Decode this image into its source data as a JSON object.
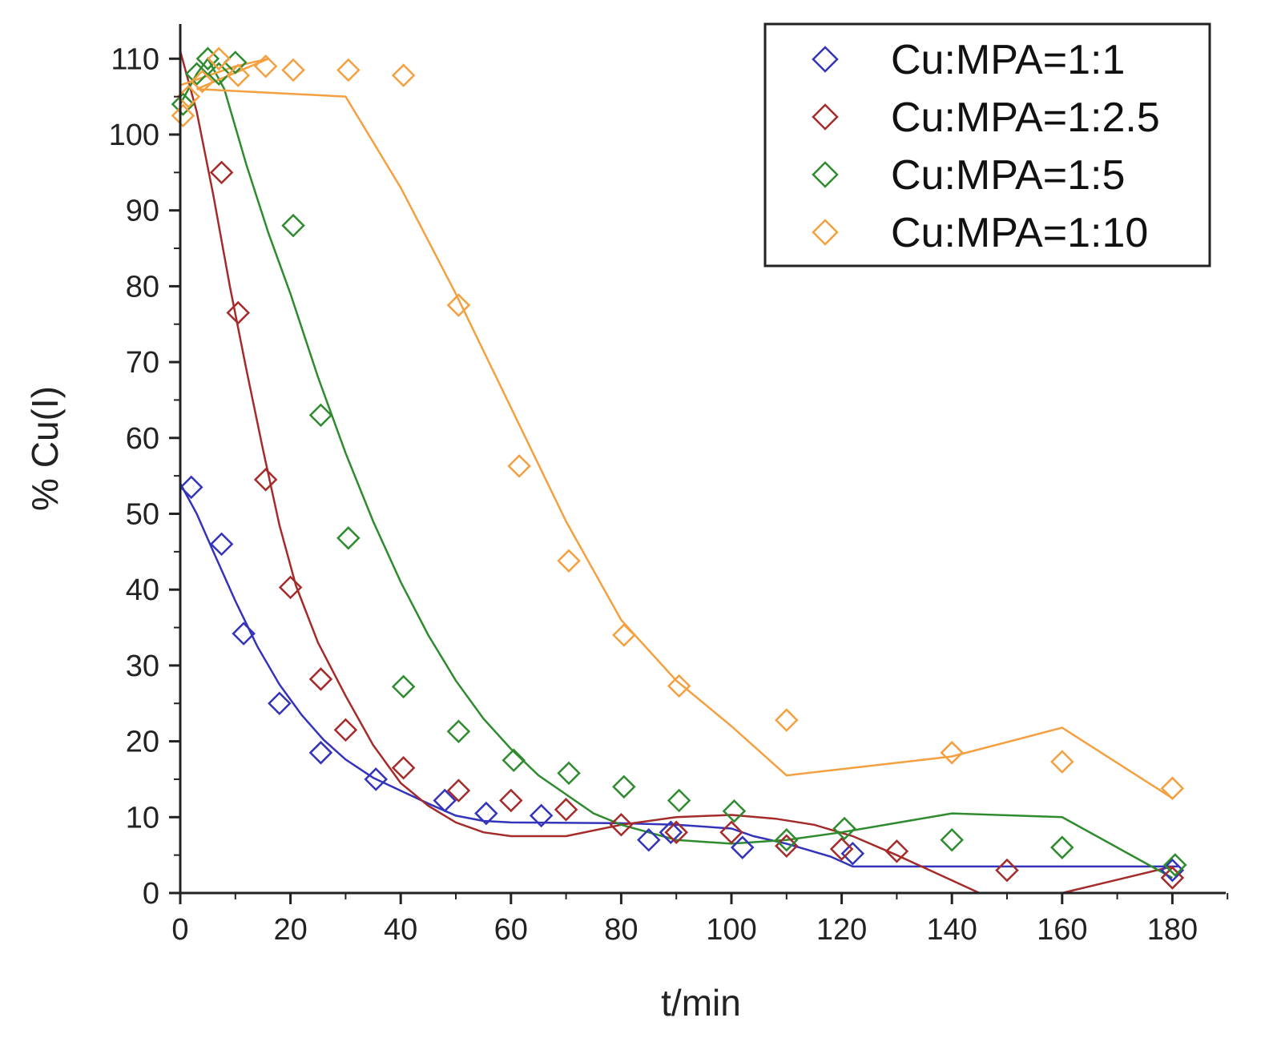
{
  "chart_data": {
    "type": "scatter",
    "title": "",
    "xlabel": "t/min",
    "ylabel": "% Cu(I)",
    "xlim": [
      0,
      190
    ],
    "ylim": [
      0,
      110
    ],
    "xticks": [
      0,
      20,
      40,
      60,
      80,
      100,
      120,
      140,
      160,
      180
    ],
    "yticks": [
      0,
      10,
      20,
      30,
      40,
      50,
      60,
      70,
      80,
      90,
      100,
      110
    ],
    "grid": false,
    "legend_position": "top-right",
    "series": [
      {
        "name": "Cu:MPA=1:1",
        "color": "#3333bb",
        "marker": "diamond-open",
        "points": [
          [
            2,
            53.5
          ],
          [
            7.5,
            46
          ],
          [
            11.5,
            34.2
          ],
          [
            18,
            25
          ],
          [
            25.5,
            18.5
          ],
          [
            35.5,
            15
          ],
          [
            48,
            12.2
          ],
          [
            55.5,
            10.5
          ],
          [
            65.5,
            10.2
          ],
          [
            85,
            7
          ],
          [
            89,
            8
          ],
          [
            102,
            6
          ],
          [
            122,
            5.2
          ],
          [
            180,
            3
          ]
        ],
        "fit": [
          [
            0,
            54
          ],
          [
            3,
            50
          ],
          [
            6,
            45
          ],
          [
            10,
            38.5
          ],
          [
            14,
            32.5
          ],
          [
            18,
            27.5
          ],
          [
            22,
            23.5
          ],
          [
            26,
            20.2
          ],
          [
            30,
            17.6
          ],
          [
            35,
            15.2
          ],
          [
            40,
            13.5
          ],
          [
            45,
            11.8
          ],
          [
            50,
            10.2
          ],
          [
            55,
            9.5
          ],
          [
            60,
            9.3
          ],
          [
            80,
            9.2
          ],
          [
            90,
            9
          ],
          [
            100,
            8.5
          ],
          [
            104,
            7.5
          ],
          [
            110,
            6.5
          ],
          [
            118,
            4.8
          ],
          [
            122,
            3.5
          ],
          [
            181,
            3.5
          ]
        ]
      },
      {
        "name": "Cu:MPA=1:2.5",
        "color": "#a52a2a",
        "marker": "diamond-open",
        "points": [
          [
            7.5,
            95
          ],
          [
            10.5,
            76.5
          ],
          [
            15.5,
            54.5
          ],
          [
            20,
            40.3
          ],
          [
            25.5,
            28.2
          ],
          [
            30,
            21.5
          ],
          [
            40.5,
            16.5
          ],
          [
            50.5,
            13.5
          ],
          [
            60,
            12.2
          ],
          [
            70,
            11
          ],
          [
            80,
            9
          ],
          [
            90,
            8
          ],
          [
            100,
            8
          ],
          [
            110,
            6.2
          ],
          [
            120,
            5.8
          ],
          [
            130,
            5.5
          ],
          [
            150,
            3
          ],
          [
            180,
            2
          ]
        ],
        "fit": [
          [
            0,
            111
          ],
          [
            3,
            103
          ],
          [
            6,
            92
          ],
          [
            9,
            80
          ],
          [
            12,
            69
          ],
          [
            15,
            58.5
          ],
          [
            18,
            48.5
          ],
          [
            21,
            40.5
          ],
          [
            25,
            33
          ],
          [
            30,
            26
          ],
          [
            35,
            19.5
          ],
          [
            40,
            14.5
          ],
          [
            45,
            11.5
          ],
          [
            50,
            9.3
          ],
          [
            55,
            8
          ],
          [
            60,
            7.5
          ],
          [
            70,
            7.5
          ],
          [
            80,
            9
          ],
          [
            90,
            10
          ],
          [
            100,
            10.3
          ],
          [
            108,
            9.8
          ],
          [
            115,
            9
          ],
          [
            122,
            7.5
          ],
          [
            130,
            5
          ],
          [
            145,
            0
          ],
          [
            160,
            0
          ],
          [
            180,
            3.5
          ]
        ]
      },
      {
        "name": "Cu:MPA=1:5",
        "color": "#2e8b2e",
        "marker": "diamond-open",
        "points": [
          [
            0.5,
            104
          ],
          [
            3,
            108
          ],
          [
            5,
            110
          ],
          [
            7,
            108
          ],
          [
            10,
            109.5
          ],
          [
            20.5,
            88
          ],
          [
            25.5,
            63
          ],
          [
            30.5,
            46.8
          ],
          [
            40.5,
            27.2
          ],
          [
            50.5,
            21.3
          ],
          [
            60.5,
            17.5
          ],
          [
            70.5,
            15.8
          ],
          [
            80.5,
            14
          ],
          [
            90.5,
            12.2
          ],
          [
            100.5,
            10.8
          ],
          [
            110,
            7
          ],
          [
            120.5,
            8.5
          ],
          [
            140,
            7
          ],
          [
            160,
            6
          ],
          [
            180.5,
            3.7
          ]
        ],
        "fit": [
          [
            0,
            104
          ],
          [
            3,
            108
          ],
          [
            5,
            110
          ],
          [
            8,
            106
          ],
          [
            12,
            96
          ],
          [
            16,
            87
          ],
          [
            20,
            79
          ],
          [
            25,
            68
          ],
          [
            30,
            58
          ],
          [
            35,
            49
          ],
          [
            40,
            41
          ],
          [
            45,
            34
          ],
          [
            50,
            28
          ],
          [
            55,
            23
          ],
          [
            60,
            19
          ],
          [
            65,
            15.5
          ],
          [
            70,
            13
          ],
          [
            75,
            10.5
          ],
          [
            80,
            9
          ],
          [
            90,
            7
          ],
          [
            100,
            6.5
          ],
          [
            110,
            7
          ],
          [
            120,
            8
          ],
          [
            140,
            10.5
          ],
          [
            160,
            10
          ],
          [
            180,
            2
          ]
        ]
      },
      {
        "name": "Cu:MPA=1:10",
        "color": "#f5a040",
        "marker": "diamond-open",
        "points": [
          [
            0.5,
            102.5
          ],
          [
            1.5,
            105
          ],
          [
            4,
            107
          ],
          [
            7,
            110
          ],
          [
            10.5,
            107.8
          ],
          [
            15.5,
            109
          ],
          [
            20.5,
            108.5
          ],
          [
            30.5,
            108.5
          ],
          [
            40.5,
            107.8
          ],
          [
            50.5,
            77.5
          ],
          [
            61.5,
            56.3
          ],
          [
            70.5,
            43.8
          ],
          [
            80.5,
            34
          ],
          [
            90.5,
            27.3
          ],
          [
            110,
            22.8
          ],
          [
            140,
            18.5
          ],
          [
            160,
            17.3
          ],
          [
            180,
            13.8
          ]
        ],
        "fit": [
          [
            0,
            106.5
          ],
          [
            2,
            107
          ],
          [
            6,
            108
          ],
          [
            10,
            109
          ],
          [
            16,
            110
          ],
          [
            3,
            106
          ],
          [
            30,
            105
          ],
          [
            40,
            93
          ],
          [
            50,
            79
          ],
          [
            60,
            64
          ],
          [
            70,
            49
          ],
          [
            80,
            36
          ],
          [
            90,
            28
          ],
          [
            100,
            22
          ],
          [
            110,
            15.5
          ],
          [
            140,
            18
          ],
          [
            160,
            21.8
          ],
          [
            180,
            12.5
          ]
        ]
      }
    ]
  }
}
